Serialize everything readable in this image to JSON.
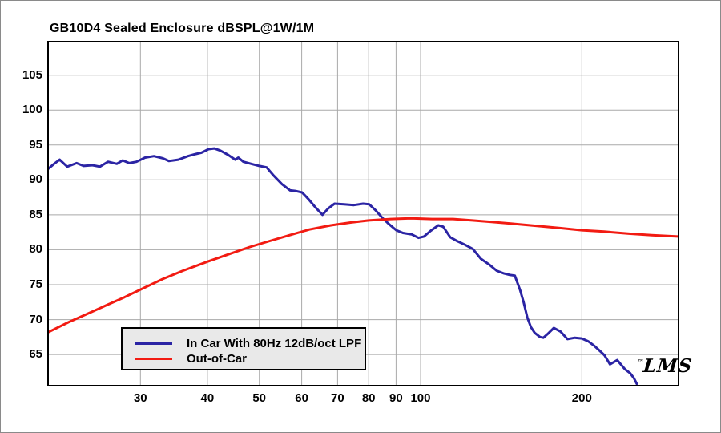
{
  "window": {
    "background": "#ffffff",
    "frame_color": "#000000",
    "grid_color": "#a9a9a9"
  },
  "chart": {
    "title": "GB10D4 Sealed Enclosure dBSPL@1W/1M",
    "logo": "LMS",
    "logo_tm": "™"
  },
  "chart_data": {
    "type": "line",
    "title": "GB10D4 Sealed Enclosure dBSPL@1W/1M",
    "xlabel": "",
    "ylabel": "",
    "x_scale": "log",
    "xlim": [
      20.24,
      302
    ],
    "ylim": [
      60.65,
      109.67
    ],
    "x_ticks": [
      30,
      40,
      50,
      60,
      70,
      80,
      90,
      100,
      200
    ],
    "y_ticks": [
      65,
      70,
      75,
      80,
      85,
      90,
      95,
      100,
      105
    ],
    "grid": true,
    "legend_position": "inside-bottom-left",
    "annotations": [
      "LMS"
    ],
    "series": [
      {
        "name": "In Car With 80Hz 12dB/oct LPF",
        "color": "#2b24a4",
        "points": [
          [
            20.2,
            91.6
          ],
          [
            20.7,
            92.3
          ],
          [
            21.2,
            92.9
          ],
          [
            21.9,
            91.9
          ],
          [
            22.8,
            92.4
          ],
          [
            23.5,
            92.0
          ],
          [
            24.4,
            92.1
          ],
          [
            25.2,
            91.9
          ],
          [
            26.1,
            92.6
          ],
          [
            27.1,
            92.3
          ],
          [
            27.8,
            92.8
          ],
          [
            28.6,
            92.4
          ],
          [
            29.5,
            92.6
          ],
          [
            30.6,
            93.2
          ],
          [
            31.8,
            93.4
          ],
          [
            33.0,
            93.1
          ],
          [
            33.9,
            92.7
          ],
          [
            35.3,
            92.9
          ],
          [
            36.8,
            93.4
          ],
          [
            38.0,
            93.7
          ],
          [
            39.0,
            93.9
          ],
          [
            40.2,
            94.4
          ],
          [
            41.2,
            94.5
          ],
          [
            42.3,
            94.2
          ],
          [
            43.7,
            93.6
          ],
          [
            45.1,
            92.9
          ],
          [
            45.7,
            93.2
          ],
          [
            46.7,
            92.6
          ],
          [
            48.3,
            92.3
          ],
          [
            50.0,
            92.0
          ],
          [
            51.6,
            91.8
          ],
          [
            53.2,
            90.6
          ],
          [
            55.1,
            89.4
          ],
          [
            57.1,
            88.5
          ],
          [
            58.6,
            88.4
          ],
          [
            60.1,
            88.2
          ],
          [
            61.7,
            87.3
          ],
          [
            63.6,
            86.1
          ],
          [
            65.6,
            85.0
          ],
          [
            67.2,
            85.9
          ],
          [
            69.1,
            86.6
          ],
          [
            72.0,
            86.5
          ],
          [
            75.1,
            86.4
          ],
          [
            78.1,
            86.6
          ],
          [
            80.2,
            86.5
          ],
          [
            82.3,
            85.7
          ],
          [
            85.0,
            84.5
          ],
          [
            87.2,
            83.7
          ],
          [
            90.1,
            82.8
          ],
          [
            92.7,
            82.4
          ],
          [
            96.3,
            82.2
          ],
          [
            99.1,
            81.7
          ],
          [
            101.5,
            81.9
          ],
          [
            104.4,
            82.7
          ],
          [
            107.9,
            83.5
          ],
          [
            110.2,
            83.3
          ],
          [
            113.6,
            81.8
          ],
          [
            116.6,
            81.3
          ],
          [
            121.1,
            80.7
          ],
          [
            125.2,
            80.1
          ],
          [
            129.6,
            78.7
          ],
          [
            134.2,
            77.9
          ],
          [
            138.7,
            77.0
          ],
          [
            143.2,
            76.6
          ],
          [
            146.7,
            76.4
          ],
          [
            149.9,
            76.3
          ],
          [
            153.4,
            74.2
          ],
          [
            155.7,
            72.5
          ],
          [
            158.2,
            70.3
          ],
          [
            160.7,
            68.9
          ],
          [
            163.3,
            68.1
          ],
          [
            167.1,
            67.5
          ],
          [
            169.5,
            67.4
          ],
          [
            172.5,
            67.9
          ],
          [
            177.3,
            68.8
          ],
          [
            182.4,
            68.3
          ],
          [
            188.0,
            67.2
          ],
          [
            194.0,
            67.4
          ],
          [
            200.0,
            67.3
          ],
          [
            205.5,
            66.9
          ],
          [
            210.5,
            66.3
          ],
          [
            215.5,
            65.6
          ],
          [
            220.4,
            64.9
          ],
          [
            225.7,
            63.6
          ],
          [
            232.9,
            64.2
          ],
          [
            240.6,
            62.9
          ],
          [
            246.3,
            62.3
          ],
          [
            250.2,
            61.6
          ],
          [
            253.3,
            60.8
          ]
        ]
      },
      {
        "name": "Out-of-Car",
        "color": "#f21b12",
        "points": [
          [
            20.2,
            68.2
          ],
          [
            22,
            69.6
          ],
          [
            24,
            70.9
          ],
          [
            26,
            72.1
          ],
          [
            28,
            73.2
          ],
          [
            30,
            74.3
          ],
          [
            33,
            75.8
          ],
          [
            36,
            77.0
          ],
          [
            40,
            78.3
          ],
          [
            44,
            79.4
          ],
          [
            48,
            80.4
          ],
          [
            52,
            81.2
          ],
          [
            57,
            82.1
          ],
          [
            62,
            82.9
          ],
          [
            68,
            83.5
          ],
          [
            74,
            83.9
          ],
          [
            80,
            84.2
          ],
          [
            88,
            84.4
          ],
          [
            96,
            84.5
          ],
          [
            105,
            84.4
          ],
          [
            115,
            84.4
          ],
          [
            125,
            84.2
          ],
          [
            135,
            84.0
          ],
          [
            150,
            83.7
          ],
          [
            165,
            83.4
          ],
          [
            182,
            83.1
          ],
          [
            200,
            82.8
          ],
          [
            220,
            82.6
          ],
          [
            245,
            82.3
          ],
          [
            270,
            82.1
          ],
          [
            302,
            81.9
          ]
        ]
      }
    ]
  }
}
